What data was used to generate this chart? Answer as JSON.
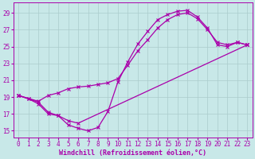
{
  "xlabel": "Windchill (Refroidissement éolien,°C)",
  "bg_color": "#c8e8e8",
  "line_color": "#aa00aa",
  "xlim": [
    -0.5,
    23.5
  ],
  "ylim": [
    14.2,
    30.2
  ],
  "xticks": [
    0,
    1,
    2,
    3,
    4,
    5,
    6,
    7,
    8,
    9,
    10,
    11,
    12,
    13,
    14,
    15,
    16,
    17,
    18,
    19,
    20,
    21,
    22,
    23
  ],
  "yticks": [
    15,
    17,
    19,
    21,
    23,
    25,
    27,
    29
  ],
  "grid_color": "#aacccc",
  "curves": [
    {
      "x": [
        0,
        1,
        2,
        3,
        4,
        5,
        6,
        7,
        8,
        9,
        10,
        11,
        12,
        13,
        14,
        15,
        16,
        17,
        18,
        19,
        20,
        21,
        22,
        23
      ],
      "y": [
        19.2,
        18.8,
        18.4,
        17.2,
        16.8,
        15.7,
        15.3,
        15.0,
        15.4,
        17.3,
        20.8,
        23.2,
        25.3,
        26.8,
        28.2,
        28.8,
        29.2,
        29.3,
        28.5,
        27.2,
        25.2,
        25.0,
        25.5,
        25.2
      ]
    },
    {
      "x": [
        0,
        2,
        3,
        4,
        5,
        6,
        7,
        8,
        9,
        10,
        11,
        12,
        13,
        14,
        15,
        16,
        17,
        18,
        19,
        20,
        21,
        22,
        23
      ],
      "y": [
        19.2,
        18.5,
        19.2,
        19.5,
        20.0,
        20.2,
        20.3,
        20.5,
        20.7,
        21.2,
        22.8,
        24.5,
        25.8,
        27.2,
        28.2,
        28.8,
        29.0,
        28.3,
        27.0,
        25.5,
        25.2,
        25.5,
        25.2
      ]
    },
    {
      "x": [
        0,
        1,
        2,
        3,
        4,
        5,
        6,
        23
      ],
      "y": [
        19.2,
        18.8,
        18.2,
        17.0,
        16.8,
        16.2,
        15.9,
        25.2
      ]
    }
  ],
  "marker_size": 3,
  "linewidth": 0.9,
  "xlabel_fontsize": 6.0,
  "tick_fontsize": 5.5
}
